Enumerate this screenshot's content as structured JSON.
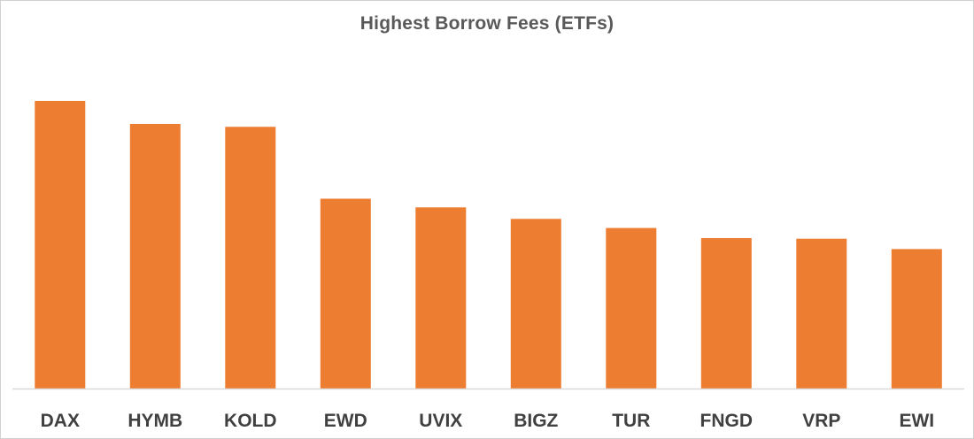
{
  "chart_data": {
    "type": "bar",
    "title": "Highest Borrow Fees (ETFs)",
    "xlabel": "",
    "ylabel": "",
    "categories": [
      "DAX",
      "HYMB",
      "KOLD",
      "EWD",
      "UVIX",
      "BIGZ",
      "TUR",
      "FNGD",
      "VRP",
      "EWI"
    ],
    "values": [
      100,
      92,
      91,
      66,
      63,
      59,
      55.8,
      52.3,
      52.1,
      48.5
    ],
    "ylim": [
      0,
      110
    ],
    "grid": false,
    "legend": "none",
    "bar_color": "#ED7D31"
  }
}
